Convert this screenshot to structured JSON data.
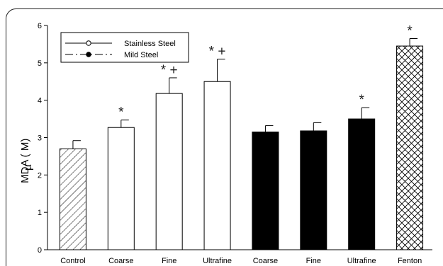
{
  "chart_data": {
    "type": "bar",
    "title": "",
    "xlabel": "",
    "ylabel": "MDA ( M)",
    "ylabel_symbol": "µ",
    "ylim": [
      0,
      6
    ],
    "yticks": [
      0,
      1,
      2,
      3,
      4,
      5,
      6
    ],
    "grid": false,
    "legend_position": "top-left",
    "legend": [
      {
        "label": "Stainless Steel",
        "style": "solid-open-circle"
      },
      {
        "label": "Mild Steel",
        "style": "dashdot-filled-circle"
      }
    ],
    "categories": [
      "Control",
      "Coarse",
      "Fine",
      "Ultrafine",
      "Coarse",
      "Fine",
      "Ultrafine",
      "Fenton"
    ],
    "values": [
      2.7,
      3.27,
      4.18,
      4.5,
      3.15,
      3.18,
      3.5,
      5.45
    ],
    "errors": [
      0.22,
      0.2,
      0.42,
      0.6,
      0.17,
      0.22,
      0.3,
      0.2
    ],
    "fills": [
      "diagonal-hatch",
      "white",
      "white",
      "white",
      "black",
      "black",
      "black",
      "cross-hatch"
    ],
    "annotations": [
      "",
      "*",
      "* +",
      "* +",
      "",
      "",
      "*",
      "*"
    ]
  }
}
